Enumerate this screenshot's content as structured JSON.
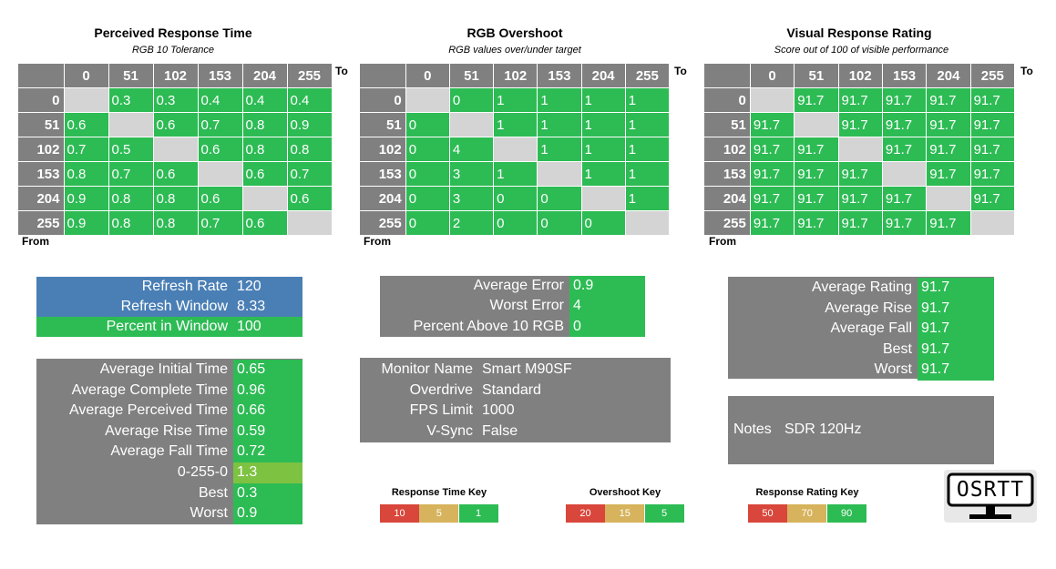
{
  "chart_data": [
    {
      "type": "table",
      "title": "Perceived Response Time",
      "subtitle": "RGB 10 Tolerance",
      "xlabel": "To",
      "ylabel": "From",
      "columns": [
        "0",
        "51",
        "102",
        "153",
        "204",
        "255"
      ],
      "rows": [
        {
          "label": "0",
          "values": [
            "",
            "0.3",
            "0.3",
            "0.4",
            "0.4",
            "0.4"
          ]
        },
        {
          "label": "51",
          "values": [
            "0.6",
            "",
            "0.6",
            "0.7",
            "0.8",
            "0.9"
          ]
        },
        {
          "label": "102",
          "values": [
            "0.7",
            "0.5",
            "",
            "0.6",
            "0.8",
            "0.8"
          ]
        },
        {
          "label": "153",
          "values": [
            "0.8",
            "0.7",
            "0.6",
            "",
            "0.6",
            "0.7"
          ]
        },
        {
          "label": "204",
          "values": [
            "0.9",
            "0.8",
            "0.8",
            "0.6",
            "",
            "0.6"
          ]
        },
        {
          "label": "255",
          "values": [
            "0.9",
            "0.8",
            "0.8",
            "0.7",
            "0.6",
            ""
          ]
        }
      ]
    },
    {
      "type": "table",
      "title": "RGB Overshoot",
      "subtitle": "RGB values over/under target",
      "xlabel": "To",
      "ylabel": "From",
      "columns": [
        "0",
        "51",
        "102",
        "153",
        "204",
        "255"
      ],
      "rows": [
        {
          "label": "0",
          "values": [
            "",
            "0",
            "1",
            "1",
            "1",
            "1"
          ]
        },
        {
          "label": "51",
          "values": [
            "0",
            "",
            "1",
            "1",
            "1",
            "1"
          ]
        },
        {
          "label": "102",
          "values": [
            "0",
            "4",
            "",
            "1",
            "1",
            "1"
          ]
        },
        {
          "label": "153",
          "values": [
            "0",
            "3",
            "1",
            "",
            "1",
            "1"
          ]
        },
        {
          "label": "204",
          "values": [
            "0",
            "3",
            "0",
            "0",
            "",
            "1"
          ]
        },
        {
          "label": "255",
          "values": [
            "0",
            "2",
            "0",
            "0",
            "0",
            ""
          ]
        }
      ]
    },
    {
      "type": "table",
      "title": "Visual Response Rating",
      "subtitle": "Score out of 100 of visible performance",
      "xlabel": "To",
      "ylabel": "From",
      "columns": [
        "0",
        "51",
        "102",
        "153",
        "204",
        "255"
      ],
      "rows": [
        {
          "label": "0",
          "values": [
            "",
            "91.7",
            "91.7",
            "91.7",
            "91.7",
            "91.7"
          ]
        },
        {
          "label": "51",
          "values": [
            "91.7",
            "",
            "91.7",
            "91.7",
            "91.7",
            "91.7"
          ]
        },
        {
          "label": "102",
          "values": [
            "91.7",
            "91.7",
            "",
            "91.7",
            "91.7",
            "91.7"
          ]
        },
        {
          "label": "153",
          "values": [
            "91.7",
            "91.7",
            "91.7",
            "",
            "91.7",
            "91.7"
          ]
        },
        {
          "label": "204",
          "values": [
            "91.7",
            "91.7",
            "91.7",
            "91.7",
            "",
            "91.7"
          ]
        },
        {
          "label": "255",
          "values": [
            "91.7",
            "91.7",
            "91.7",
            "91.7",
            "91.7",
            ""
          ]
        }
      ]
    }
  ],
  "refresh_box": [
    {
      "label": "Refresh Rate",
      "value": "120",
      "color": "#4a7fb5"
    },
    {
      "label": "Refresh Window",
      "value": "8.33",
      "color": "#4a7fb5"
    },
    {
      "label": "Percent in Window",
      "value": "100",
      "color": "#2dbb54"
    }
  ],
  "response_stats": [
    {
      "label": "Average Initial Time",
      "value": "0.65",
      "color": "#2dbb54"
    },
    {
      "label": "Average Complete Time",
      "value": "0.96",
      "color": "#2dbb54"
    },
    {
      "label": "Average Perceived Time",
      "value": "0.66",
      "color": "#2dbb54"
    },
    {
      "label": "Average Rise Time",
      "value": "0.59",
      "color": "#2dbb54"
    },
    {
      "label": "Average Fall Time",
      "value": "0.72",
      "color": "#2dbb54"
    },
    {
      "label": "0-255-0",
      "value": "1.3",
      "color": "#7ec242"
    },
    {
      "label": "Best",
      "value": "0.3",
      "color": "#2dbb54"
    },
    {
      "label": "Worst",
      "value": "0.9",
      "color": "#2dbb54"
    }
  ],
  "error_box": [
    {
      "label": "Average Error",
      "value": "0.9"
    },
    {
      "label": "Worst Error",
      "value": "4"
    },
    {
      "label": "Percent Above 10 RGB",
      "value": "0"
    }
  ],
  "monitor_box": [
    {
      "label": "Monitor Name",
      "value": "Smart M90SF"
    },
    {
      "label": "Overdrive",
      "value": "Standard"
    },
    {
      "label": "FPS Limit",
      "value": "1000"
    },
    {
      "label": "V-Sync",
      "value": "False"
    }
  ],
  "rating_box": [
    {
      "label": "Average Rating",
      "value": "91.7"
    },
    {
      "label": "Average Rise",
      "value": "91.7"
    },
    {
      "label": "Average Fall",
      "value": "91.7"
    },
    {
      "label": "Best",
      "value": "91.7"
    },
    {
      "label": "Worst",
      "value": "91.7"
    }
  ],
  "notes": {
    "label": "Notes",
    "value": "SDR 120Hz"
  },
  "keys": [
    {
      "title": "Response Time Key",
      "cells": [
        {
          "text": "10",
          "color": "#d9463b"
        },
        {
          "text": "5",
          "color": "#d6b35c"
        },
        {
          "text": "1",
          "color": "#2dbb54"
        }
      ]
    },
    {
      "title": "Overshoot Key",
      "cells": [
        {
          "text": "20",
          "color": "#d9463b"
        },
        {
          "text": "15",
          "color": "#d6b35c"
        },
        {
          "text": "5",
          "color": "#2dbb54"
        }
      ]
    },
    {
      "title": "Response Rating Key",
      "cells": [
        {
          "text": "50",
          "color": "#d9463b"
        },
        {
          "text": "70",
          "color": "#d6b35c"
        },
        {
          "text": "90",
          "color": "#2dbb54"
        }
      ]
    }
  ],
  "logo": {
    "text": "OSRTT",
    "icon": "monitor-logo-icon"
  }
}
